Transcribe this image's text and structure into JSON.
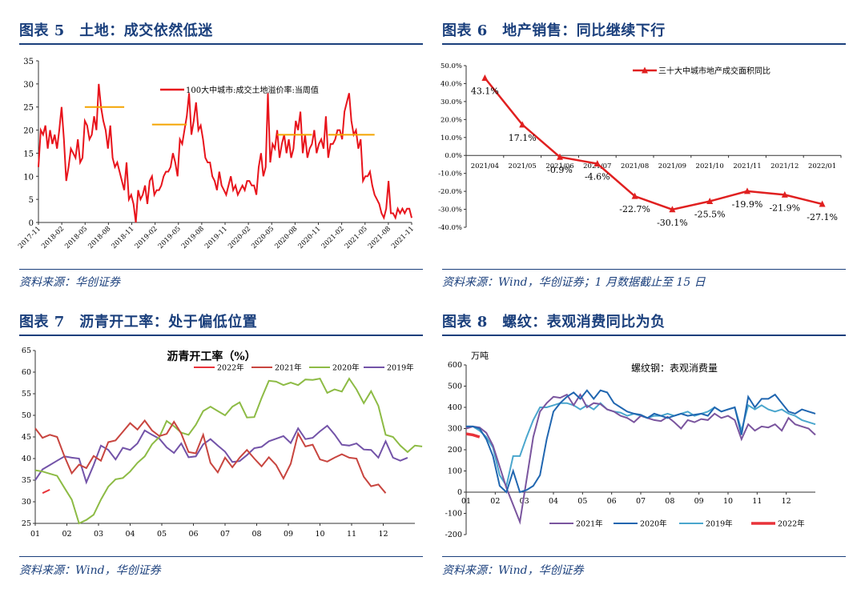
{
  "panels": [
    {
      "title": "图表 5　土地：成交依然低迷",
      "source": "资料来源：华创证券"
    },
    {
      "title": "图表 6　地产销售：同比继续下行",
      "source": "资料来源：Wind，华创证券；1 月数据截止至 15 日"
    },
    {
      "title": "图表 7　沥青开工率：处于偏低位置",
      "source": "资料来源：Wind，华创证券"
    },
    {
      "title": "图表 8　螺纹：表观消费同比为负",
      "source": "资料来源：Wind，华创证券"
    }
  ],
  "colors": {
    "title_blue": "#1a3f7c",
    "land_red": "#e8141c",
    "land_avg": "#f4a400",
    "sales_red": "#e02020",
    "y2022": "#e8333a",
    "y2021_asphalt": "#c8453f",
    "y2020_asphalt": "#8dbb45",
    "y2019_asphalt": "#7353a8",
    "y2021_rebar": "#7a559e",
    "y2020_rebar": "#2066b0",
    "y2019_rebar": "#4aa6cd"
  },
  "chart_data": [
    {
      "type": "line",
      "legend": "100大中城市:成交土地溢价率:当周值",
      "y_ticks": [
        "0",
        "5",
        "10",
        "15",
        "20",
        "25",
        "30",
        "35"
      ],
      "ylim": [
        0,
        35
      ],
      "x_ticks": [
        "2017-11",
        "2018-02",
        "2018-05",
        "2018-08",
        "2018-11",
        "2019-02",
        "2019-05",
        "2019-08",
        "2019-11",
        "2020-02",
        "2020-05",
        "2020-08",
        "2020-11",
        "2021-02",
        "2021-05",
        "2021-08",
        "2021-11"
      ],
      "values": [
        12,
        20,
        19,
        21,
        16,
        20,
        17,
        19,
        16,
        20,
        25,
        18,
        9,
        12,
        16,
        15,
        14,
        18,
        13,
        14,
        22,
        21,
        18,
        19,
        23,
        20,
        30,
        25,
        22,
        20,
        16,
        21,
        14,
        12,
        13,
        11,
        9,
        7,
        13,
        5,
        6,
        4,
        0,
        7,
        5,
        6,
        8,
        4,
        9,
        10,
        6,
        7,
        7,
        8,
        10,
        11,
        11,
        12,
        15,
        13,
        10,
        18,
        17,
        20,
        23,
        28,
        19,
        22,
        26,
        20,
        21,
        18,
        14,
        13,
        13,
        10,
        9,
        7,
        11,
        8,
        7,
        6,
        8,
        10,
        7,
        8,
        6,
        7,
        8,
        7,
        9,
        9,
        8,
        8,
        6,
        12,
        15,
        10,
        12,
        28,
        13,
        17,
        16,
        20,
        14,
        17,
        19,
        15,
        18,
        14,
        16,
        22,
        20,
        24,
        15,
        19,
        14,
        16,
        17,
        20,
        15,
        17,
        18,
        16,
        23,
        14,
        17,
        17,
        18,
        20,
        20,
        18,
        24,
        26,
        28,
        22,
        19,
        20,
        16,
        18,
        9,
        10,
        10,
        11,
        8,
        6,
        5,
        4,
        2,
        1,
        3,
        9,
        2,
        2,
        1,
        3,
        2,
        3,
        2,
        3,
        3,
        1
      ],
      "avg_segments": [
        {
          "value": 25,
          "start": 20,
          "end": 37
        },
        {
          "value": 21.2,
          "start": 49,
          "end": 64
        },
        {
          "value": 19,
          "start": 103,
          "end": 118
        },
        {
          "value": 19,
          "start": 125,
          "end": 145
        }
      ]
    },
    {
      "type": "line",
      "legend": "三十大中城市地产成交面积同比",
      "categories": [
        "2021/04",
        "2021/05",
        "2021/06",
        "2021/07",
        "2021/08",
        "2021/09",
        "2021/10",
        "2021/11",
        "2021/12",
        "2022/01"
      ],
      "values": [
        43.1,
        17.1,
        -0.9,
        -4.6,
        -22.7,
        -30.1,
        -25.5,
        -19.9,
        -21.9,
        -27.1
      ],
      "labels": [
        "43.1%",
        "17.1%",
        "-0.9%",
        "-4.6%",
        "-22.7%",
        "-30.1%",
        "-25.5%",
        "-19.9%",
        "-21.9%",
        "-27.1%"
      ],
      "y_ticks": [
        "50.0%",
        "40.0%",
        "30.0%",
        "20.0%",
        "10.0%",
        "0.0%",
        "-10.0%",
        "-20.0%",
        "-30.0%",
        "-40.0%"
      ],
      "ylim": [
        -40,
        50
      ]
    },
    {
      "type": "line",
      "title": "沥青开工率（%）",
      "y_ticks": [
        "25",
        "30",
        "35",
        "40",
        "45",
        "50",
        "55",
        "60",
        "65"
      ],
      "ylim": [
        25,
        65
      ],
      "x_ticks": [
        "01",
        "02",
        "03",
        "04",
        "05",
        "06",
        "07",
        "08",
        "09",
        "10",
        "11",
        "12"
      ],
      "series": [
        {
          "name": "2022年",
          "values": [
            32,
            32.8
          ]
        },
        {
          "name": "2021年",
          "values": [
            47,
            44.8,
            45.5,
            45,
            40.5,
            36.6,
            38.6,
            37.8,
            40.6,
            39.5,
            43.8,
            44.2,
            46.2,
            48.2,
            46.7,
            48.8,
            46.5,
            45.2,
            45.7,
            48.5,
            45.8,
            41.5,
            41.2,
            45.5,
            39,
            36.8,
            40.2,
            38,
            40.2,
            42,
            40,
            38.2,
            40.3,
            38.5,
            35.4,
            38.8,
            45.8,
            42.8,
            43.2,
            39.8,
            39.3,
            40.2,
            41,
            40.2,
            40,
            35.8,
            33.6,
            34,
            32
          ]
        },
        {
          "name": "2020年",
          "values": [
            37.3,
            37,
            36.5,
            36,
            33.2,
            30.5,
            25,
            25.8,
            27,
            30.5,
            33.5,
            35.2,
            35.5,
            37,
            39,
            40.5,
            43.3,
            45,
            48.7,
            47.5,
            46,
            45.5,
            47.8,
            51,
            52,
            51,
            50,
            52,
            53,
            49.5,
            49.6,
            54,
            58,
            57.8,
            57,
            57.6,
            57,
            58.3,
            58.2,
            58.5,
            55.2,
            56,
            55.5,
            58.5,
            56,
            52.8,
            55.6,
            52.2,
            45.5,
            45,
            43,
            41.5,
            43,
            42.8
          ]
        },
        {
          "name": "2019年",
          "values": [
            35,
            37.5,
            38.5,
            39.5,
            40.5,
            40.2,
            40,
            34.5,
            38.5,
            43,
            42,
            39.8,
            42.5,
            42,
            43.5,
            46.5,
            45.5,
            44.6,
            42.6,
            41.3,
            43.5,
            40.3,
            40.5,
            43.3,
            44.5,
            43,
            41.6,
            39.2,
            39.4,
            40.8,
            42.4,
            42.7,
            44,
            44.6,
            45.2,
            43.6,
            47,
            44.5,
            44.8,
            46.3,
            47.6,
            45.6,
            43.2,
            43,
            43.5,
            42.1,
            42,
            40.2,
            44,
            40.2,
            39.5,
            40.2
          ]
        }
      ]
    },
    {
      "type": "line",
      "title": "螺纹钢：表观消费量",
      "ylabel": "万吨",
      "y_ticks": [
        "600",
        "500",
        "400",
        "300",
        "200",
        "100",
        "0",
        "-100",
        "-200"
      ],
      "ylim": [
        -200,
        600
      ],
      "x_ticks": [
        "01",
        "02",
        "03",
        "04",
        "05",
        "06",
        "07",
        "08",
        "09",
        "10",
        "11",
        "12"
      ],
      "series": [
        {
          "name": "2021年",
          "values": [
            300,
            310,
            305,
            280,
            220,
            120,
            20,
            -60,
            -140,
            60,
            260,
            380,
            420,
            450,
            445,
            460,
            410,
            460,
            400,
            420,
            415,
            390,
            380,
            360,
            350,
            330,
            360,
            350,
            340,
            335,
            355,
            330,
            300,
            340,
            330,
            345,
            340,
            370,
            350,
            360,
            340,
            250,
            320,
            290,
            310,
            305,
            320,
            290,
            350,
            320,
            310,
            300,
            270
          ]
        },
        {
          "name": "2020年",
          "values": [
            310,
            310,
            300,
            250,
            170,
            30,
            0,
            100,
            0,
            10,
            30,
            80,
            250,
            380,
            420,
            450,
            470,
            440,
            480,
            440,
            480,
            470,
            420,
            400,
            380,
            370,
            365,
            350,
            370,
            360,
            350,
            360,
            370,
            360,
            365,
            370,
            360,
            400,
            380,
            390,
            400,
            270,
            450,
            400,
            440,
            440,
            460,
            420,
            380,
            370,
            390,
            380,
            370
          ]
        },
        {
          "name": "2019年",
          "values": [
            310,
            310,
            290,
            260,
            210,
            80,
            30,
            170,
            170,
            260,
            340,
            400,
            400,
            410,
            420,
            420,
            410,
            390,
            410,
            390,
            420,
            390,
            380,
            375,
            360,
            370,
            360,
            350,
            360,
            360,
            370,
            360,
            370,
            380,
            360,
            370,
            380,
            400,
            380,
            390,
            400,
            290,
            410,
            390,
            410,
            390,
            380,
            390,
            370,
            360,
            340,
            330,
            320
          ]
        },
        {
          "name": "2022年",
          "values": [
            275,
            270,
            260
          ]
        }
      ]
    }
  ]
}
